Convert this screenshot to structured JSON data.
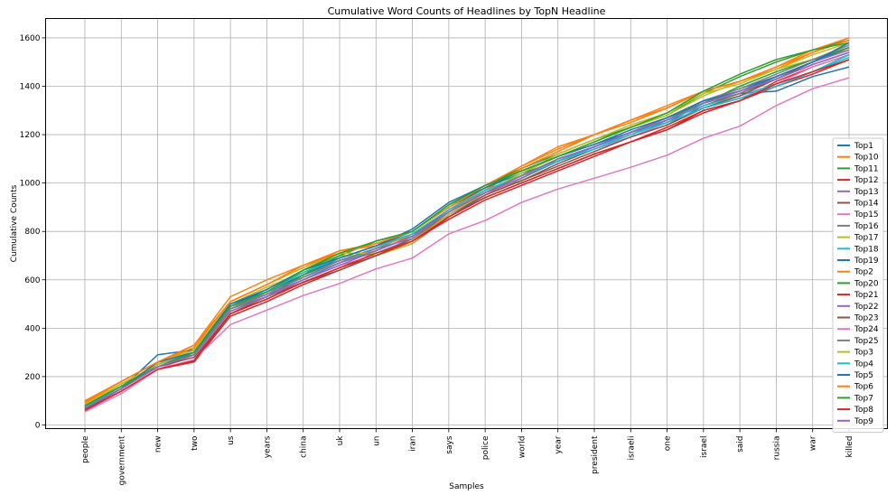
{
  "chart_data": {
    "type": "line",
    "title": "Cumulative Word Counts of Headlines by TopN Headline",
    "xlabel": "Samples",
    "ylabel": "Cumulative Counts",
    "ylim": [
      -15,
      1680
    ],
    "yticks": [
      0,
      200,
      400,
      600,
      800,
      1000,
      1200,
      1400,
      1600
    ],
    "grid": true,
    "legend_position": "right",
    "categories": [
      "people",
      "government",
      "new",
      "two",
      "us",
      "years",
      "china",
      "uk",
      "un",
      "iran",
      "says",
      "police",
      "world",
      "year",
      "president",
      "israeli",
      "one",
      "israel",
      "said",
      "russia",
      "war",
      "killed"
    ],
    "series": [
      {
        "name": "Top1",
        "color": "#1f77b4",
        "values": [
          72,
          150,
          260,
          290,
          490,
          550,
          630,
          680,
          730,
          790,
          860,
          950,
          1020,
          1090,
          1150,
          1210,
          1250,
          1330,
          1370,
          1380,
          1440,
          1480
        ]
      },
      {
        "name": "Top10",
        "color": "#ff7f0e",
        "values": [
          90,
          180,
          260,
          330,
          530,
          600,
          660,
          720,
          750,
          780,
          890,
          980,
          1070,
          1150,
          1200,
          1260,
          1310,
          1380,
          1420,
          1480,
          1540,
          1600
        ]
      },
      {
        "name": "Top11",
        "color": "#2ca02c",
        "values": [
          80,
          170,
          240,
          300,
          490,
          560,
          640,
          700,
          760,
          800,
          910,
          990,
          1060,
          1120,
          1180,
          1230,
          1280,
          1370,
          1440,
          1500,
          1550,
          1590
        ]
      },
      {
        "name": "Top12",
        "color": "#d62728",
        "values": [
          65,
          140,
          230,
          270,
          460,
          530,
          590,
          650,
          700,
          750,
          860,
          940,
          1000,
          1060,
          1120,
          1170,
          1220,
          1300,
          1340,
          1420,
          1480,
          1530
        ]
      },
      {
        "name": "Top13",
        "color": "#9467bd",
        "values": [
          75,
          160,
          250,
          300,
          490,
          540,
          620,
          680,
          710,
          770,
          880,
          960,
          1020,
          1100,
          1150,
          1210,
          1270,
          1340,
          1380,
          1440,
          1500,
          1560
        ]
      },
      {
        "name": "Top14",
        "color": "#8c564b",
        "values": [
          70,
          150,
          240,
          290,
          480,
          540,
          610,
          670,
          720,
          780,
          890,
          960,
          1010,
          1080,
          1140,
          1190,
          1240,
          1320,
          1370,
          1430,
          1500,
          1550
        ]
      },
      {
        "name": "Top15",
        "color": "#e377c2",
        "values": [
          65,
          140,
          230,
          290,
          470,
          530,
          600,
          660,
          700,
          760,
          870,
          950,
          1020,
          1090,
          1140,
          1190,
          1250,
          1310,
          1350,
          1410,
          1480,
          1530
        ]
      },
      {
        "name": "Top16",
        "color": "#7f7f7f",
        "values": [
          80,
          160,
          250,
          310,
          490,
          550,
          620,
          680,
          720,
          780,
          880,
          960,
          1030,
          1100,
          1150,
          1210,
          1260,
          1330,
          1370,
          1440,
          1500,
          1560
        ]
      },
      {
        "name": "Top17",
        "color": "#bcbd22",
        "values": [
          85,
          170,
          250,
          320,
          500,
          570,
          630,
          700,
          700,
          750,
          870,
          960,
          1040,
          1110,
          1170,
          1230,
          1280,
          1360,
          1420,
          1470,
          1510,
          1550
        ]
      },
      {
        "name": "Top18",
        "color": "#17becf",
        "values": [
          75,
          150,
          240,
          300,
          480,
          540,
          610,
          670,
          730,
          790,
          890,
          970,
          1030,
          1090,
          1140,
          1200,
          1260,
          1320,
          1360,
          1410,
          1460,
          1520
        ]
      },
      {
        "name": "Top19",
        "color": "#1f77b4",
        "values": [
          70,
          150,
          290,
          310,
          500,
          550,
          620,
          690,
          740,
          810,
          920,
          990,
          1050,
          1110,
          1160,
          1210,
          1260,
          1340,
          1390,
          1440,
          1500,
          1560
        ]
      },
      {
        "name": "Top2",
        "color": "#ff7f0e",
        "values": [
          95,
          180,
          260,
          320,
          510,
          580,
          650,
          720,
          740,
          780,
          880,
          970,
          1060,
          1130,
          1200,
          1260,
          1320,
          1380,
          1420,
          1470,
          1540,
          1590
        ]
      },
      {
        "name": "Top20",
        "color": "#2ca02c",
        "values": [
          80,
          160,
          250,
          310,
          480,
          530,
          620,
          700,
          760,
          800,
          910,
          980,
          1040,
          1090,
          1150,
          1210,
          1270,
          1330,
          1400,
          1460,
          1510,
          1560
        ]
      },
      {
        "name": "Top21",
        "color": "#d62728",
        "values": [
          60,
          140,
          230,
          260,
          450,
          510,
          580,
          640,
          700,
          760,
          850,
          930,
          990,
          1050,
          1110,
          1170,
          1220,
          1290,
          1340,
          1400,
          1450,
          1510
        ]
      },
      {
        "name": "Top22",
        "color": "#9467bd",
        "values": [
          70,
          150,
          240,
          290,
          480,
          540,
          600,
          660,
          720,
          780,
          880,
          960,
          1030,
          1100,
          1150,
          1210,
          1260,
          1330,
          1380,
          1440,
          1500,
          1550
        ]
      },
      {
        "name": "Top23",
        "color": "#8c564b",
        "values": [
          65,
          150,
          240,
          280,
          460,
          520,
          590,
          640,
          700,
          770,
          870,
          950,
          1010,
          1070,
          1130,
          1190,
          1240,
          1310,
          1360,
          1430,
          1490,
          1540
        ]
      },
      {
        "name": "Top24",
        "color": "#e377c2",
        "values": [
          55,
          130,
          230,
          270,
          415,
          475,
          535,
          585,
          645,
          690,
          790,
          845,
          920,
          975,
          1020,
          1065,
          1115,
          1185,
          1235,
          1320,
          1390,
          1435
        ]
      },
      {
        "name": "Top25",
        "color": "#7f7f7f",
        "values": [
          70,
          150,
          250,
          300,
          480,
          550,
          610,
          680,
          730,
          770,
          880,
          960,
          1020,
          1090,
          1150,
          1210,
          1270,
          1340,
          1390,
          1450,
          1510,
          1570
        ]
      },
      {
        "name": "Top3",
        "color": "#bcbd22",
        "values": [
          85,
          170,
          250,
          310,
          510,
          580,
          650,
          710,
          710,
          760,
          870,
          960,
          1040,
          1120,
          1180,
          1240,
          1290,
          1370,
          1410,
          1470,
          1530,
          1580
        ]
      },
      {
        "name": "Top4",
        "color": "#17becf",
        "values": [
          75,
          160,
          240,
          300,
          490,
          550,
          630,
          690,
          740,
          790,
          890,
          970,
          1030,
          1090,
          1150,
          1200,
          1250,
          1310,
          1350,
          1400,
          1460,
          1530
        ]
      },
      {
        "name": "Top5",
        "color": "#1f77b4",
        "values": [
          70,
          150,
          260,
          300,
          500,
          560,
          640,
          690,
          740,
          800,
          900,
          980,
          1050,
          1110,
          1160,
          1220,
          1270,
          1340,
          1380,
          1440,
          1500,
          1580
        ]
      },
      {
        "name": "Top6",
        "color": "#ff7f0e",
        "values": [
          100,
          180,
          260,
          330,
          510,
          580,
          660,
          710,
          750,
          800,
          900,
          990,
          1070,
          1140,
          1200,
          1250,
          1310,
          1380,
          1420,
          1480,
          1550,
          1600
        ]
      },
      {
        "name": "Top7",
        "color": "#2ca02c",
        "values": [
          80,
          160,
          240,
          300,
          490,
          550,
          640,
          710,
          760,
          800,
          910,
          990,
          1050,
          1110,
          1170,
          1230,
          1290,
          1380,
          1450,
          1510,
          1550,
          1580
        ]
      },
      {
        "name": "Top8",
        "color": "#d62728",
        "values": [
          60,
          140,
          230,
          265,
          460,
          520,
          590,
          650,
          710,
          760,
          860,
          940,
          1000,
          1060,
          1120,
          1170,
          1230,
          1300,
          1340,
          1410,
          1460,
          1510
        ]
      },
      {
        "name": "Top9",
        "color": "#9467bd",
        "values": [
          70,
          150,
          240,
          290,
          470,
          530,
          600,
          670,
          720,
          780,
          880,
          960,
          1030,
          1100,
          1150,
          1210,
          1260,
          1330,
          1380,
          1430,
          1490,
          1540
        ]
      }
    ]
  }
}
